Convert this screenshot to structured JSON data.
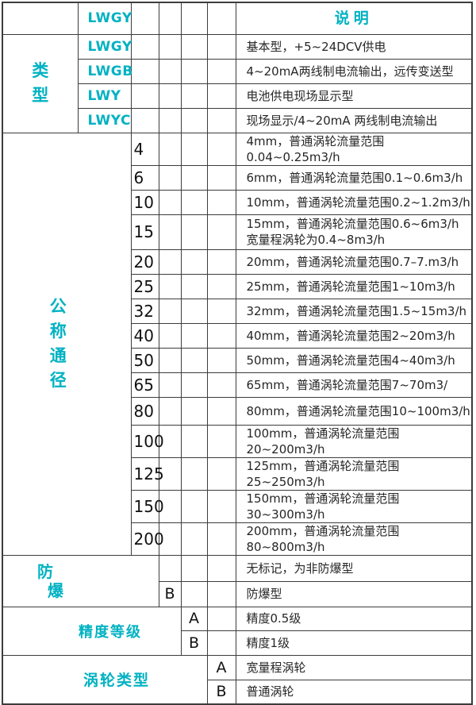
{
  "colors": {
    "accent": "#00b2c2",
    "text": "#262626",
    "grid": "#3c3c3c",
    "background": "#ffffff"
  },
  "header": {
    "model_code": "LWGY",
    "description_title": "说明"
  },
  "sections": [
    {
      "id": "type",
      "label": "类型",
      "rows": [
        {
          "code": "LWGY",
          "desc": "基本型，+5~24DCV供电"
        },
        {
          "code": "LWGB",
          "desc": "4~20mA两线制电流输出，远传变送型"
        },
        {
          "code": "LWY",
          "desc": "电池供电现场显示型"
        },
        {
          "code": "LWYC",
          "desc": "现场显示/4~20mA 两线制电流输出"
        }
      ]
    },
    {
      "id": "nominal-diameter",
      "label": "公称通径",
      "rows": [
        {
          "code": "4",
          "desc": "4mm，普通涡轮流量范围0.04~0.25m3/h"
        },
        {
          "code": "6",
          "desc": "6mm，普通涡轮流量范围0.1~0.6m3/h"
        },
        {
          "code": "10",
          "desc": "10mm，普通涡轮流量范围0.2~1.2m3/h"
        },
        {
          "code": "15",
          "desc": "15mm，普通涡轮流量范围0.6~6m3/h\n宽量程涡轮为0.4~8m3/h"
        },
        {
          "code": "20",
          "desc": "20mm，普通涡轮流量范围0.7–7.m3/h"
        },
        {
          "code": "25",
          "desc": "25mm，普通涡轮流量范围1~10m3/h"
        },
        {
          "code": "32",
          "desc": "32mm，普通涡轮流量范围1.5~15m3/h"
        },
        {
          "code": "40",
          "desc": "40mm，普通涡轮流量范围2~20m3/h"
        },
        {
          "code": "50",
          "desc": "50mm，普通涡轮流量范围4~40m3/h"
        },
        {
          "code": "65",
          "desc": "65mm，普通涡轮流量范围7~70m3/"
        },
        {
          "code": "80",
          "desc": "80mm，普通涡轮流量范围10~100m3/h"
        },
        {
          "code": "100",
          "desc": "100mm，普通涡轮流量范围20~200m3/h"
        },
        {
          "code": "125",
          "desc": "125mm，普通涡轮流量范围25~250m3/h"
        },
        {
          "code": "150",
          "desc": "150mm，普通涡轮流量范围30~300m3/h"
        },
        {
          "code": "200",
          "desc": "200mm，普通涡轮流量范围80~800m3/h"
        }
      ]
    },
    {
      "id": "explosion-proof",
      "label": "防爆",
      "rows": [
        {
          "code": "",
          "desc": "无标记，为非防爆型"
        },
        {
          "code": "B",
          "desc": "防爆型"
        }
      ]
    },
    {
      "id": "accuracy-class",
      "label": "精度等级",
      "rows": [
        {
          "code": "A",
          "desc": "精度0.5级"
        },
        {
          "code": "B",
          "desc": "精度1级"
        }
      ]
    },
    {
      "id": "turbine-type",
      "label": "涡轮类型",
      "rows": [
        {
          "code": "A",
          "desc": "宽量程涡轮"
        },
        {
          "code": "B",
          "desc": "普通涡轮"
        }
      ]
    }
  ]
}
